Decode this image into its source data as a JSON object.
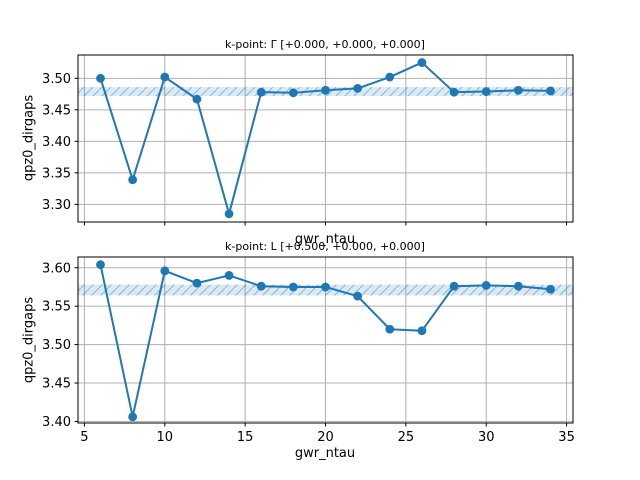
{
  "figure": {
    "background": "#ffffff"
  },
  "colors": {
    "series_line": "#1f77b4",
    "marker_fill": "#1f77b4",
    "band_fill": "rgba(31,119,180,0.16)",
    "band_hatch": "rgba(31,119,180,0.45)",
    "grid": "#b0b0b0",
    "spine": "#000000",
    "tick": "#000000",
    "text": "#000000"
  },
  "chart_data": [
    {
      "type": "line",
      "title": "k-point: Γ [+0.000, +0.000, +0.000]",
      "xlabel": "gwr_ntau",
      "ylabel": "qpz0_dirgaps",
      "x": [
        6,
        8,
        10,
        12,
        14,
        16,
        18,
        20,
        22,
        24,
        26,
        28,
        30,
        32,
        34
      ],
      "y": [
        3.5,
        3.339,
        3.502,
        3.467,
        3.285,
        3.478,
        3.477,
        3.481,
        3.484,
        3.502,
        3.525,
        3.478,
        3.479,
        3.481,
        3.48
      ],
      "xlim": [
        4.6,
        35.4
      ],
      "ylim": [
        3.272,
        3.537
      ],
      "xticks": [
        5,
        10,
        15,
        20,
        25,
        30,
        35
      ],
      "yticks": [
        3.3,
        3.35,
        3.4,
        3.45,
        3.5
      ],
      "xtick_labels_shown": false,
      "grid": true,
      "marker": "circle",
      "tolerance_band": {
        "ymin": 3.472,
        "ymax": 3.486
      }
    },
    {
      "type": "line",
      "title": "k-point: L [+0.500, +0.000, +0.000]",
      "xlabel": "gwr_ntau",
      "ylabel": "qpz0_dirgaps",
      "x": [
        6,
        8,
        10,
        12,
        14,
        16,
        18,
        20,
        22,
        24,
        26,
        28,
        30,
        32,
        34
      ],
      "y": [
        3.604,
        3.406,
        3.596,
        3.58,
        3.59,
        3.576,
        3.575,
        3.575,
        3.563,
        3.52,
        3.518,
        3.576,
        3.577,
        3.576,
        3.572
      ],
      "xlim": [
        4.6,
        35.4
      ],
      "ylim": [
        3.398,
        3.614
      ],
      "xticks": [
        5,
        10,
        15,
        20,
        25,
        30,
        35
      ],
      "yticks": [
        3.4,
        3.45,
        3.5,
        3.55,
        3.6
      ],
      "xtick_labels_shown": true,
      "grid": true,
      "marker": "circle",
      "tolerance_band": {
        "ymin": 3.564,
        "ymax": 3.578
      }
    }
  ]
}
